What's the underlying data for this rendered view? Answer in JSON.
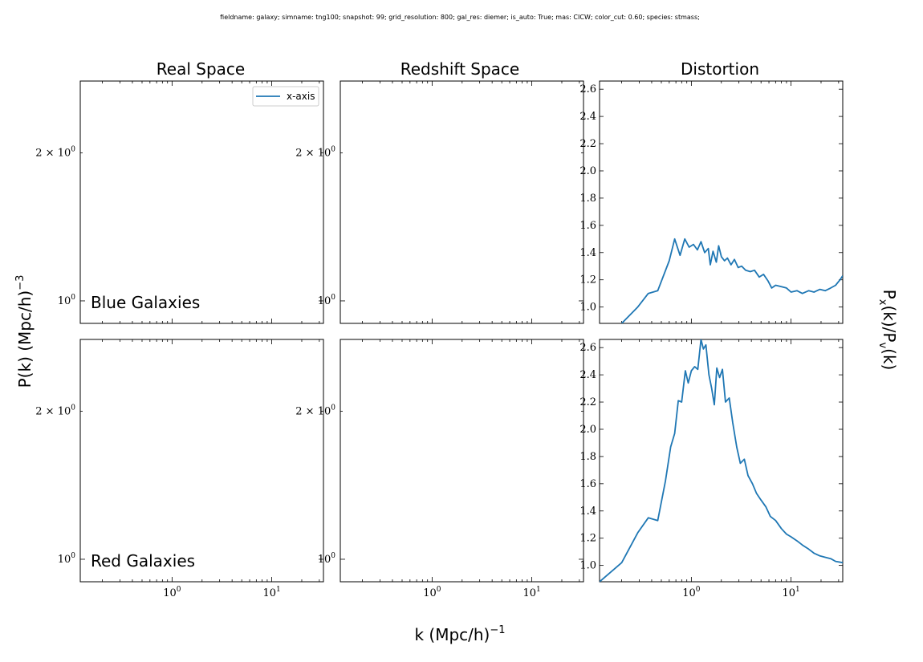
{
  "suptitle": "fieldname: galaxy; simname: tng100; snapshot: 99; grid_resolution: 800; gal_res: diemer; is_auto: True; mas: CICW; color_cut: 0.60; species: stmass;",
  "column_titles": [
    "Real Space",
    "Redshift Space",
    "Distortion"
  ],
  "row_labels": [
    "Blue Galaxies",
    "Red Galaxies"
  ],
  "ylabel_left": "P(k) (Mpc/h)",
  "ylabel_left_exp": "−3",
  "xlabel": "k (Mpc/h)",
  "xlabel_exp": "−1",
  "ylabel_right_main": "P",
  "ylabel_right_sub1": "x",
  "ylabel_right_mid": "(k)/P",
  "ylabel_right_sub2": "v",
  "ylabel_right_end": "(k)",
  "legend_label": "x-axis",
  "line_color": "#1f77b4",
  "chart_data": {
    "type": "line",
    "x_scale": "log",
    "xlim": [
      0.12,
      33
    ],
    "x_ticks": [
      {
        "value": 1,
        "label": "10",
        "exp": "0"
      },
      {
        "value": 10,
        "label": "10",
        "exp": "1"
      }
    ],
    "power_panels": {
      "y_scale": "log",
      "ylim": [
        0.9,
        2.8
      ],
      "y_ticks": [
        {
          "value": 2,
          "label": "2 × 10",
          "exp": "0"
        },
        {
          "value": 1,
          "label": "10",
          "exp": "0"
        }
      ],
      "series": []
    },
    "distortion_panels": {
      "y_scale": "linear",
      "ylim": [
        0.88,
        2.66
      ],
      "y_ticks": [
        "1.0",
        "1.2",
        "1.4",
        "1.6",
        "1.8",
        "2.0",
        "2.2",
        "2.4",
        "2.6"
      ],
      "series": [
        {
          "name": "x-axis",
          "panel": "Blue Galaxies",
          "x": [
            0.2,
            0.29,
            0.37,
            0.46,
            0.6,
            0.68,
            0.77,
            0.86,
            0.95,
            1.05,
            1.15,
            1.25,
            1.36,
            1.48,
            1.55,
            1.65,
            1.78,
            1.88,
            2.0,
            2.15,
            2.3,
            2.5,
            2.7,
            2.95,
            3.2,
            3.5,
            3.9,
            4.3,
            4.8,
            5.3,
            5.9,
            6.4,
            7.0,
            8.0,
            9.0,
            10.0,
            11.5,
            13.0,
            15.0,
            17.0,
            19.5,
            22.0,
            25.0,
            28.0,
            31.0,
            33.0
          ],
          "y": [
            0.88,
            1.0,
            1.1,
            1.12,
            1.34,
            1.5,
            1.38,
            1.5,
            1.44,
            1.46,
            1.42,
            1.48,
            1.4,
            1.43,
            1.31,
            1.41,
            1.33,
            1.45,
            1.37,
            1.34,
            1.36,
            1.31,
            1.35,
            1.29,
            1.3,
            1.27,
            1.26,
            1.27,
            1.22,
            1.24,
            1.19,
            1.14,
            1.16,
            1.15,
            1.14,
            1.11,
            1.12,
            1.1,
            1.12,
            1.11,
            1.13,
            1.12,
            1.14,
            1.16,
            1.2,
            1.23
          ]
        },
        {
          "name": "x-axis",
          "panel": "Red Galaxies",
          "x": [
            0.12,
            0.2,
            0.29,
            0.37,
            0.46,
            0.55,
            0.62,
            0.68,
            0.74,
            0.8,
            0.87,
            0.93,
            1.0,
            1.08,
            1.16,
            1.25,
            1.32,
            1.4,
            1.5,
            1.6,
            1.7,
            1.8,
            1.92,
            2.05,
            2.2,
            2.4,
            2.6,
            2.85,
            3.1,
            3.4,
            3.7,
            4.1,
            4.5,
            5.0,
            5.6,
            6.2,
            7.0,
            8.0,
            9.0,
            10.0,
            11.5,
            13.0,
            15.0,
            17.0,
            19.5,
            22.0,
            25.0,
            28.0,
            33.0
          ],
          "y": [
            0.88,
            1.02,
            1.24,
            1.35,
            1.33,
            1.62,
            1.87,
            1.97,
            2.21,
            2.2,
            2.43,
            2.34,
            2.43,
            2.46,
            2.44,
            2.66,
            2.59,
            2.62,
            2.4,
            2.3,
            2.18,
            2.45,
            2.38,
            2.44,
            2.2,
            2.23,
            2.05,
            1.87,
            1.75,
            1.78,
            1.66,
            1.6,
            1.53,
            1.48,
            1.43,
            1.36,
            1.33,
            1.27,
            1.23,
            1.21,
            1.18,
            1.15,
            1.12,
            1.09,
            1.07,
            1.06,
            1.05,
            1.03,
            1.02
          ]
        }
      ]
    }
  }
}
